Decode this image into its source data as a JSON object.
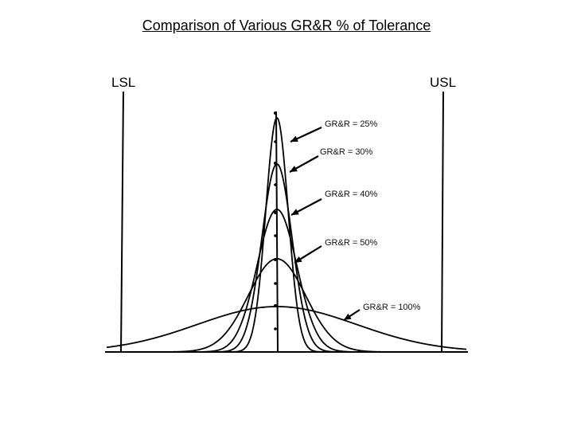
{
  "title": "Comparison of Various GR&R % of Tolerance",
  "spec_limits": {
    "lower": "LSL",
    "upper": "USL"
  },
  "curves": [
    {
      "label": "GR&R = 25%"
    },
    {
      "label": "GR&R = 30%"
    },
    {
      "label": "GR&R = 40%"
    },
    {
      "label": "GR&R = 50%"
    },
    {
      "label": "GR&R = 100%"
    }
  ]
}
